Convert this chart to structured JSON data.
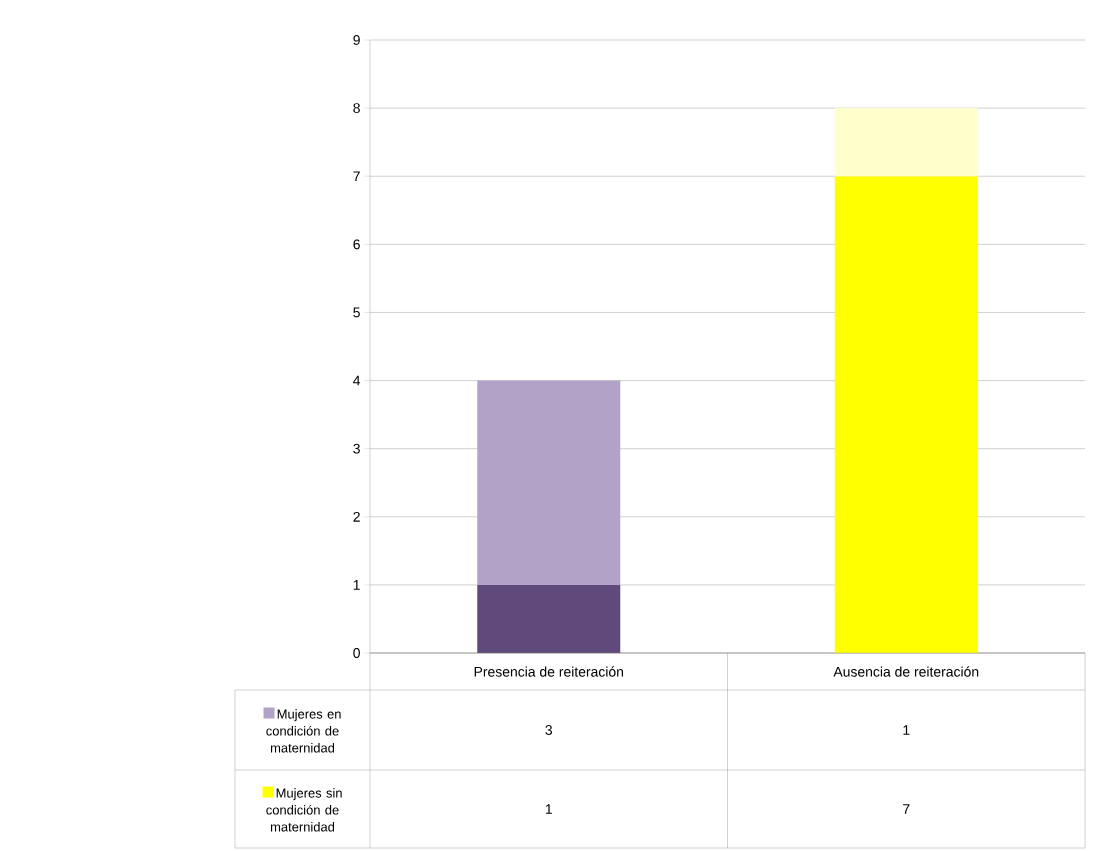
{
  "chart_data": {
    "type": "bar",
    "stacked": true,
    "categories": [
      "Presencia de reiteración",
      "Ausencia de reiteración"
    ],
    "series": [
      {
        "name": "Mujeres sin condición de maternidad",
        "color": "#ffff00",
        "colors": [
          "#604a7b",
          "#ffff00"
        ],
        "values": [
          1,
          7
        ]
      },
      {
        "name": "Mujeres en condición de maternidad",
        "color": "#b3a2c7",
        "colors": [
          "#b3a2c7",
          "#ffffcc"
        ],
        "values": [
          3,
          1
        ]
      }
    ],
    "ylim": [
      0,
      9
    ],
    "yticks": [
      0,
      1,
      2,
      3,
      4,
      5,
      6,
      7,
      8,
      9
    ],
    "grid": "y",
    "legend": "bottom",
    "data_labels": true
  }
}
